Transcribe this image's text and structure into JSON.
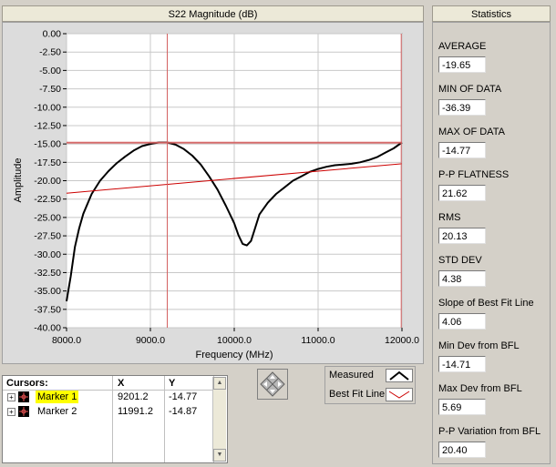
{
  "graph": {
    "title": "S22 Magnitude (dB)",
    "chart_data": {
      "type": "line",
      "xlabel": "Frequency (MHz)",
      "ylabel": "Amplitude",
      "xlim": [
        8000,
        12000
      ],
      "ylim": [
        -40,
        0
      ],
      "x_ticks": [
        "8000.0",
        "9000.0",
        "10000.0",
        "11000.0",
        "12000.0"
      ],
      "y_ticks": [
        "0.00",
        "-2.50",
        "-5.00",
        "-7.50",
        "-10.00",
        "-12.50",
        "-15.00",
        "-17.50",
        "-20.00",
        "-22.50",
        "-25.00",
        "-27.50",
        "-30.00",
        "-32.50",
        "-35.00",
        "-37.50",
        "-40.00"
      ],
      "grid": true,
      "series": [
        {
          "name": "Measured",
          "color": "#000000",
          "x": [
            8000,
            8050,
            8100,
            8150,
            8200,
            8300,
            8400,
            8500,
            8600,
            8700,
            8800,
            8900,
            9000,
            9100,
            9200,
            9300,
            9400,
            9500,
            9600,
            9700,
            9800,
            9900,
            10000,
            10050,
            10100,
            10150,
            10200,
            10250,
            10300,
            10400,
            10500,
            10600,
            10700,
            10800,
            10900,
            11000,
            11100,
            11200,
            11300,
            11400,
            11500,
            11600,
            11700,
            11800,
            11900,
            12000
          ],
          "y": [
            -36.4,
            -33.0,
            -29.0,
            -26.5,
            -24.5,
            -21.8,
            -20.0,
            -18.7,
            -17.6,
            -16.7,
            -15.9,
            -15.3,
            -15.0,
            -14.8,
            -14.8,
            -15.1,
            -15.7,
            -16.6,
            -17.8,
            -19.4,
            -21.2,
            -23.4,
            -25.8,
            -27.4,
            -28.6,
            -28.8,
            -28.2,
            -26.4,
            -24.6,
            -23.0,
            -21.8,
            -20.9,
            -20.0,
            -19.4,
            -18.8,
            -18.4,
            -18.1,
            -17.9,
            -17.8,
            -17.7,
            -17.5,
            -17.2,
            -16.8,
            -16.2,
            -15.6,
            -14.8
          ]
        },
        {
          "name": "Best Fit Line",
          "color": "#cc0000",
          "x": [
            8000,
            12000
          ],
          "y": [
            -21.7,
            -17.7
          ]
        }
      ],
      "cursors": [
        {
          "name": "Marker 1",
          "x": 9201.2,
          "y": -14.77
        },
        {
          "name": "Marker 2",
          "x": 11991.2,
          "y": -14.87
        }
      ]
    }
  },
  "cursor_table": {
    "headers": {
      "name": "Cursors:",
      "x": "X",
      "y": "Y"
    },
    "rows": [
      {
        "name": "Marker 1",
        "x": "9201.2",
        "y": "-14.77"
      },
      {
        "name": "Marker 2",
        "x": "11991.2",
        "y": "-14.87"
      }
    ]
  },
  "legend": {
    "measured_label": "Measured",
    "bestfit_label": "Best Fit Line"
  },
  "statistics": {
    "title": "Statistics",
    "items": [
      {
        "label": "AVERAGE",
        "value": "-19.65"
      },
      {
        "label": "MIN OF DATA",
        "value": "-36.39"
      },
      {
        "label": "MAX OF DATA",
        "value": "-14.77"
      },
      {
        "label": "P-P FLATNESS",
        "value": "21.62"
      },
      {
        "label": "RMS",
        "value": "20.13"
      },
      {
        "label": "STD DEV",
        "value": "4.38"
      },
      {
        "label": "Slope of Best Fit Line",
        "value": "4.06"
      },
      {
        "label": "Min Dev from BFL",
        "value": "-14.71"
      },
      {
        "label": "Max Dev from BFL",
        "value": "5.69"
      },
      {
        "label": "P-P Variation from BFL",
        "value": "20.40"
      }
    ]
  },
  "colors": {
    "panel_bg": "#d4d0c8",
    "plot_bg": "#ffffff",
    "grid": "#c8c8c8",
    "measured": "#000000",
    "bestfit": "#cc0000",
    "cursor": "#d46060",
    "selected_highlight": "#ffff00"
  }
}
